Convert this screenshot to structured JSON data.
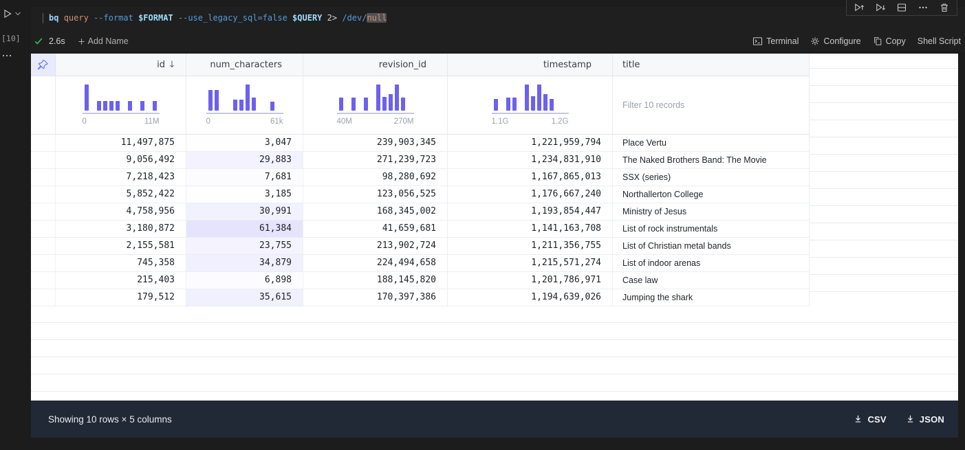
{
  "colors": {
    "accent_indigo": "#6c61ee",
    "histogram_baseline": "#c7c3f5",
    "num_characters_tint_rgb": "104,97,242",
    "footer_bg": "#212936",
    "success_green": "#3fbf5f"
  },
  "gutter": {
    "execution_label": "[10]"
  },
  "cell": {
    "command": {
      "tokens": [
        {
          "text": "bq ",
          "style": "cmd"
        },
        {
          "text": "query ",
          "style": "str"
        },
        {
          "text": "--format ",
          "style": "flag"
        },
        {
          "text": "$FORMAT ",
          "style": "var"
        },
        {
          "text": "--use_legacy_sql=false ",
          "style": "flag"
        },
        {
          "text": "$QUERY ",
          "style": "var"
        },
        {
          "text": "2> ",
          "style": "plain"
        },
        {
          "text": "/dev/",
          "style": "flag"
        },
        {
          "text": "null",
          "style": "hl"
        }
      ]
    },
    "status": {
      "duration": "2.6s",
      "add_name_label": "Add Name"
    },
    "actions": [
      {
        "label": "Terminal"
      },
      {
        "label": "Configure"
      },
      {
        "label": "Copy"
      },
      {
        "label": "Shell Script"
      }
    ],
    "toolbar_icons": [
      "run-above",
      "run-below",
      "split-cell",
      "more-actions",
      "delete-cell"
    ]
  },
  "table": {
    "columns": [
      {
        "key": "id",
        "label": "id",
        "sort": "desc",
        "align": "right",
        "histogram": {
          "bars": [
            1,
            0,
            0.36,
            0.36,
            0.36,
            0.36,
            0,
            0.36,
            0,
            0.36,
            0,
            0.36
          ],
          "min_label": "0",
          "max_label": "11M"
        }
      },
      {
        "key": "num_characters",
        "label": "num_characters",
        "align": "right",
        "histogram": {
          "bars": [
            0.8,
            0.8,
            0,
            0,
            0.42,
            0.42,
            1,
            0.5,
            0,
            0,
            0.35,
            0
          ],
          "min_label": "0",
          "max_label": "61k"
        }
      },
      {
        "key": "revision_id",
        "label": "revision_id",
        "align": "right",
        "histogram": {
          "bars": [
            0.5,
            0,
            0.5,
            0,
            0.5,
            0,
            1,
            0.52,
            0.62,
            1,
            0.5,
            0
          ],
          "min_label": "40M",
          "max_label": "270M"
        }
      },
      {
        "key": "timestamp",
        "label": "timestamp",
        "align": "right",
        "histogram": {
          "bars": [
            0.45,
            0,
            0.5,
            0.5,
            0,
            1,
            0.55,
            1,
            0.62,
            0.45,
            0,
            0
          ],
          "min_label": "1.1G",
          "max_label": "1.2G"
        }
      },
      {
        "key": "title",
        "label": "title",
        "align": "left",
        "filter_placeholder": "Filter 10 records"
      }
    ],
    "rows": [
      [
        "11,497,875",
        "3,047",
        "239,903,345",
        "1,221,959,794",
        "Place Vertu"
      ],
      [
        "9,056,492",
        "29,883",
        "271,239,723",
        "1,234,831,910",
        "The Naked Brothers Band: The Movie"
      ],
      [
        "7,218,423",
        "7,681",
        "98,280,692",
        "1,167,865,013",
        "SSX (series)"
      ],
      [
        "5,852,422",
        "3,185",
        "123,056,525",
        "1,176,667,240",
        "Northallerton College"
      ],
      [
        "4,758,956",
        "30,991",
        "168,345,002",
        "1,193,854,447",
        "Ministry of Jesus"
      ],
      [
        "3,180,872",
        "61,384",
        "41,659,681",
        "1,141,163,708",
        "List of rock instrumentals"
      ],
      [
        "2,155,581",
        "23,755",
        "213,902,724",
        "1,211,356,755",
        "List of Christian metal bands"
      ],
      [
        "745,358",
        "34,879",
        "224,494,658",
        "1,215,571,274",
        "List of indoor arenas"
      ],
      [
        "215,403",
        "6,898",
        "188,145,820",
        "1,201,786,971",
        "Case law"
      ],
      [
        "179,512",
        "35,615",
        "170,397,386",
        "1,194,639,026",
        "Jumping the shark"
      ]
    ]
  },
  "footer": {
    "summary": "Showing 10 rows × 5 columns",
    "buttons": [
      {
        "label": "CSV"
      },
      {
        "label": "JSON"
      }
    ]
  }
}
